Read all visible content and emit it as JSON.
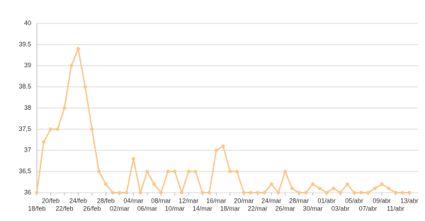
{
  "chart_data": {
    "type": "line",
    "categories": [
      "18/feb",
      null,
      "20/feb",
      null,
      "22/feb",
      null,
      "24/feb",
      null,
      "26/feb",
      null,
      "28/feb",
      null,
      "02/mar",
      null,
      "04/mar",
      null,
      "06/mar",
      null,
      "08/mar",
      null,
      "10/mar",
      null,
      "12/mar",
      null,
      "14/mar",
      null,
      "16/mar",
      null,
      "18/mar",
      null,
      "20/mar",
      null,
      "22/mar",
      null,
      "24/mar",
      null,
      "26/mar",
      null,
      "28/mar",
      null,
      "30/mar",
      null,
      "01/abr",
      null,
      "03/abr",
      null,
      "05/abr",
      null,
      "07/abr",
      null,
      "09/abr",
      null,
      "11/abr",
      null,
      "13/abr"
    ],
    "values": [
      36,
      37.2,
      37.5,
      37.5,
      38,
      39,
      39.4,
      38.5,
      37.5,
      36.5,
      36.2,
      36,
      36,
      36,
      36.8,
      36,
      36.5,
      36.2,
      36,
      36.5,
      36.5,
      36,
      36.5,
      36.5,
      36,
      36,
      37,
      37.1,
      36.5,
      36.5,
      36,
      36,
      36,
      36,
      36.2,
      36,
      36.5,
      36.1,
      36,
      36,
      36.2,
      36.1,
      36,
      36.1,
      36,
      36.2,
      36,
      36,
      36,
      36.1,
      36.2,
      36.1,
      36,
      36,
      36
    ],
    "color": "#fbc88c",
    "ylim": [
      36,
      40
    ],
    "yticks": [
      36,
      {
        "value": 36.5,
        "label": "36,5"
      },
      37,
      {
        "value": 37.5,
        "label": "37,5"
      },
      38,
      38.5,
      39,
      39.5,
      40
    ],
    "grid": true
  }
}
